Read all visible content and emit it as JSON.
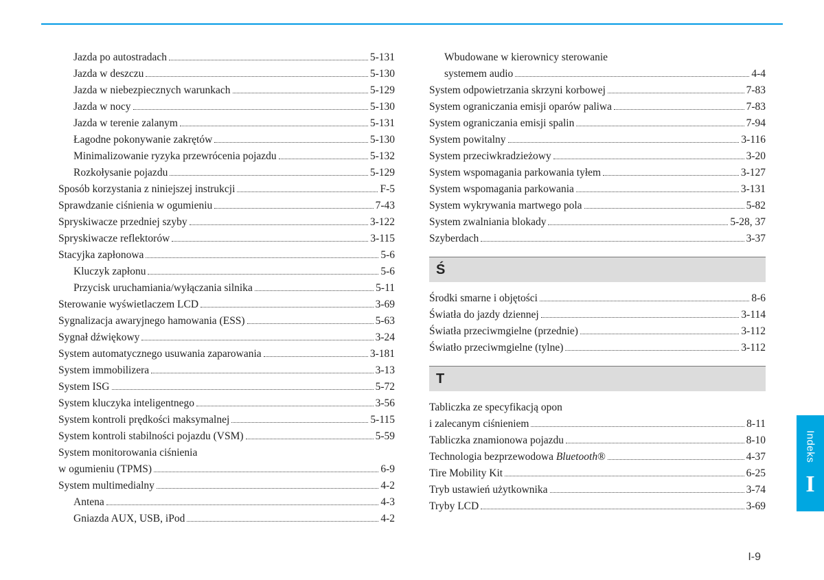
{
  "page_number": "I-9",
  "side_tab": {
    "label": "Indeks",
    "letter": "I"
  },
  "left_column": [
    {
      "label": "Jazda po autostradach",
      "page": "5-131",
      "indent": true
    },
    {
      "label": "Jazda w deszczu",
      "page": "5-130",
      "indent": true
    },
    {
      "label": "Jazda w niebezpiecznych warunkach",
      "page": "5-129",
      "indent": true
    },
    {
      "label": "Jazda w nocy",
      "page": "5-130",
      "indent": true
    },
    {
      "label": "Jazda w terenie zalanym",
      "page": "5-131",
      "indent": true
    },
    {
      "label": "Łagodne pokonywanie zakrętów",
      "page": "5-130",
      "indent": true
    },
    {
      "label": "Minimalizowanie ryzyka przewrócenia pojazdu",
      "page": "5-132",
      "indent": true
    },
    {
      "label": "Rozkołysanie pojazdu",
      "page": "5-129",
      "indent": true
    },
    {
      "label": "Sposób korzystania z niniejszej instrukcji",
      "page": "F-5"
    },
    {
      "label": "Sprawdzanie ciśnienia w ogumieniu",
      "page": "7-43"
    },
    {
      "label": "Spryskiwacze przedniej szyby",
      "page": "3-122"
    },
    {
      "label": "Spryskiwacze reflektorów",
      "page": "3-115"
    },
    {
      "label": "Stacyjka zapłonowa",
      "page": "5-6"
    },
    {
      "label": "Kluczyk zapłonu",
      "page": "5-6",
      "indent": true
    },
    {
      "label": "Przycisk uruchamiania/wyłączania silnika",
      "page": "5-11",
      "indent": true
    },
    {
      "label": "Sterowanie wyświetlaczem LCD",
      "page": "3-69"
    },
    {
      "label": "Sygnalizacja awaryjnego hamowania (ESS)",
      "page": "5-63"
    },
    {
      "label": "Sygnał dźwiękowy",
      "page": "3-24"
    },
    {
      "label": "System automatycznego usuwania zaparowania",
      "page": "3-181"
    },
    {
      "label": "System immobilizera",
      "page": "3-13"
    },
    {
      "label": "System ISG",
      "page": "5-72"
    },
    {
      "label": "System kluczyka inteligentnego",
      "page": "3-56"
    },
    {
      "label": "System kontroli prędkości maksymalnej",
      "page": "5-115"
    },
    {
      "label": "System kontroli stabilności pojazdu (VSM)",
      "page": "5-59"
    },
    {
      "wrap": true,
      "label1": "System monitorowania ciśnienia",
      "label2": "w ogumieniu (TPMS)",
      "page": "6-9"
    },
    {
      "label": "System multimedialny",
      "page": "4-2"
    },
    {
      "label": "Antena",
      "page": "4-3",
      "indent": true
    },
    {
      "label": "Gniazda AUX, USB, iPod",
      "page": "4-2",
      "indent": true
    }
  ],
  "right_column": [
    {
      "wrap": true,
      "indent": true,
      "label1": "Wbudowane w kierownicy sterowanie",
      "label2": "systemem audio",
      "page": "4-4"
    },
    {
      "label": "System odpowietrzania skrzyni korbowej",
      "page": "7-83"
    },
    {
      "label": "System ograniczania emisji oparów paliwa",
      "page": "7-83"
    },
    {
      "label": "System ograniczania emisji spalin",
      "page": "7-94"
    },
    {
      "label": "System powitalny",
      "page": "3-116"
    },
    {
      "label": "System przeciwkradzieżowy",
      "page": "3-20"
    },
    {
      "label": "System wspomagania parkowania tyłem",
      "page": "3-127"
    },
    {
      "label": "System wspomagania parkowania",
      "page": "3-131"
    },
    {
      "label": "System wykrywania martwego pola",
      "page": "5-82"
    },
    {
      "label": "System zwalniania blokady",
      "page": "5-28, 37"
    },
    {
      "label": "Szyberdach",
      "page": "3-37"
    },
    {
      "heading": "Ś"
    },
    {
      "label": "Środki smarne i objętości",
      "page": "8-6"
    },
    {
      "label": "Światła do jazdy dziennej",
      "page": "3-114"
    },
    {
      "label": "Światła przeciwmgielne (przednie)",
      "page": "3-112"
    },
    {
      "label": "Światło przeciwmgielne (tylne)",
      "page": "3-112"
    },
    {
      "heading": "T"
    },
    {
      "wrap": true,
      "label1": "Tabliczka ze specyfikacją opon",
      "label2": "i zalecanym ciśnieniem",
      "page": "8-11"
    },
    {
      "label": "Tabliczka znamionowa pojazdu",
      "page": "8-10"
    },
    {
      "label_html": "Technologia bezprzewodowa <span class=\"ital\">Bluetooth</span>®",
      "page": "4-37"
    },
    {
      "label": "Tire Mobility Kit",
      "page": "6-25"
    },
    {
      "label": "Tryb ustawień użytkownika",
      "page": "3-74"
    },
    {
      "label": "Tryby LCD",
      "page": "3-69"
    }
  ]
}
